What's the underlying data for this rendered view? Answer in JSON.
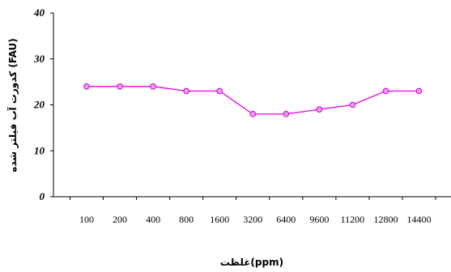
{
  "chart_data": {
    "type": "line",
    "categories": [
      "100",
      "200",
      "400",
      "800",
      "1600",
      "3200",
      "6400",
      "9600",
      "11200",
      "12800",
      "14400"
    ],
    "series": [
      {
        "values": [
          24,
          24,
          24,
          23,
          23,
          18,
          18,
          19,
          20,
          23,
          23
        ]
      }
    ],
    "title": "",
    "xlabel": "غلظت(ppm)",
    "ylabel": "کدورت آب فیلتر شده (FAU)",
    "ylim": [
      0,
      40
    ],
    "yticks": [
      "0",
      "10",
      "20",
      "30",
      "40"
    ],
    "grid": false,
    "legend": "none",
    "line_color": "#e600e6",
    "marker_fill": "#ff99ff",
    "marker_edge": "#c000c0"
  }
}
